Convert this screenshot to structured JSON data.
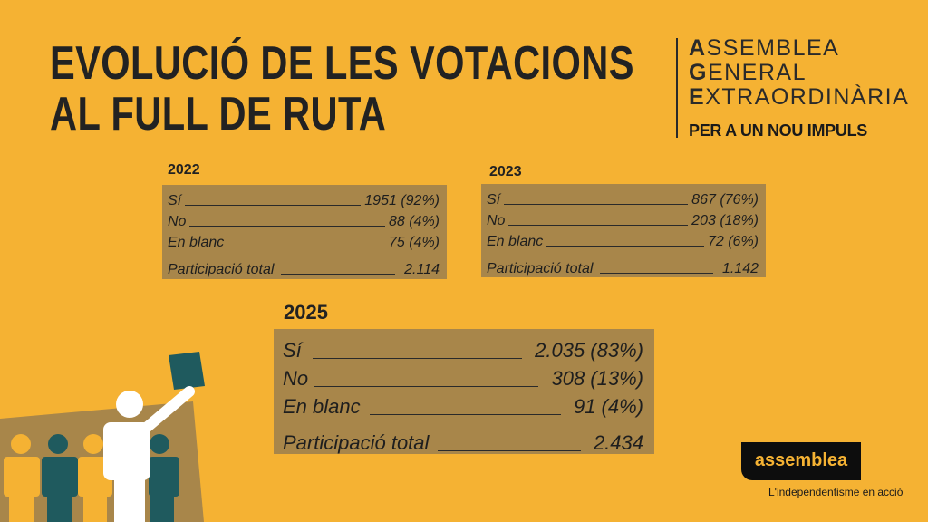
{
  "title": {
    "line1": "EVOLUCIÓ DE LES VOTACIONS",
    "line2": "AL FULL DE RUTA"
  },
  "event": {
    "l1_initial": "A",
    "l1_rest": "SSEMBLEA",
    "l2_initial": "G",
    "l2_rest": "ENERAL",
    "l3_initial": "E",
    "l3_rest": "XTRAORDINÀRIA",
    "tagline": "PER A UN NOU IMPULS"
  },
  "results": [
    {
      "year": "2022",
      "rows": [
        {
          "label": "Sí",
          "value": "1951 (92%)"
        },
        {
          "label": "No",
          "value": "88 (4%)"
        },
        {
          "label": "En blanc",
          "value": "75 (4%)"
        },
        {
          "label": "Participació total",
          "value": "2.114"
        }
      ]
    },
    {
      "year": "2023",
      "rows": [
        {
          "label": "Sí",
          "value": "867 (76%)"
        },
        {
          "label": "No",
          "value": "203 (18%)"
        },
        {
          "label": "En blanc",
          "value": "72 (6%)"
        },
        {
          "label": "Participació total",
          "value": "1.142"
        }
      ]
    },
    {
      "year": "2025",
      "rows": [
        {
          "label": "Sí",
          "value": "2.035 (83%)"
        },
        {
          "label": "No",
          "value": "308 (13%)"
        },
        {
          "label": "En blanc",
          "value": "91 (4%)"
        },
        {
          "label": "Participació total",
          "value": "2.434"
        }
      ]
    }
  ],
  "brand": {
    "logo": "assemblea",
    "slogan": "L'independentisme en acció"
  },
  "colors": {
    "background": "#F5B233",
    "box": "#A8864A",
    "teal": "#1F5A5E"
  },
  "illustration": "people-voting-icon"
}
